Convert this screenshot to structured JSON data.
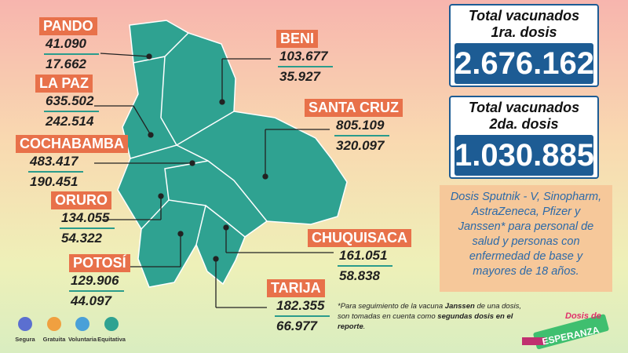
{
  "departments": [
    {
      "name": "PANDO",
      "first": "41.090",
      "second": "17.662"
    },
    {
      "name": "BENI",
      "first": "103.677",
      "second": "35.927"
    },
    {
      "name": "LA PAZ",
      "first": "635.502",
      "second": "242.514"
    },
    {
      "name": "SANTA CRUZ",
      "first": "805.109",
      "second": "320.097"
    },
    {
      "name": "COCHABAMBA",
      "first": "483.417",
      "second": "190.451"
    },
    {
      "name": "ORURO",
      "first": "134.055",
      "second": "54.322"
    },
    {
      "name": "CHUQUISACA",
      "first": "161.051",
      "second": "58.838"
    },
    {
      "name": "POTOSÍ",
      "first": "129.906",
      "second": "44.097"
    },
    {
      "name": "TARIJA",
      "first": "182.355",
      "second": "66.977"
    }
  ],
  "totals": [
    {
      "title_line1": "Total vacunados",
      "title_line2": "1ra. dosis",
      "value": "2.676.162"
    },
    {
      "title_line1": "Total vacunados",
      "title_line2": "2da. dosis",
      "value": "1.030.885"
    }
  ],
  "note": "Dosis Sputnik - V, Sinopharm, AstraZeneca, Pfizer y Janssen* para personal de salud y personas con enfermedad de base y mayores de 18 años.",
  "footnote": [
    "*Para seguimiento de la vacuna ",
    "Janssen",
    " de una dosis, son tomadas en cuenta como ",
    "segundas dosis en el reporte",
    "."
  ],
  "icons": [
    "Segura",
    "Gratuita",
    "Voluntaria",
    "Equitativa"
  ],
  "logo": {
    "line1": "Dosis de",
    "line2": "ESPERANZA"
  }
}
